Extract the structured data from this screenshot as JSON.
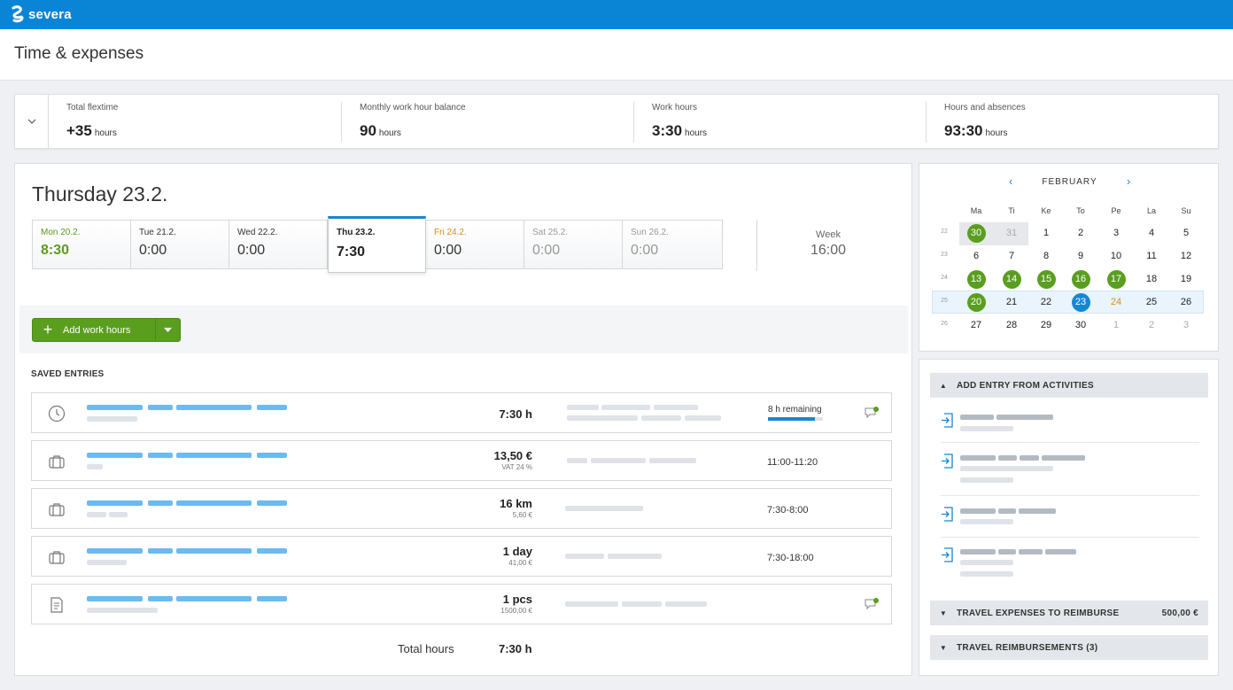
{
  "app": {
    "brand": "severa"
  },
  "page": {
    "title": "Time & expenses"
  },
  "summary": {
    "stats": [
      {
        "label": "Total flextime",
        "value": "+35",
        "unit": "hours"
      },
      {
        "label": "Monthly work hour balance",
        "value": "90",
        "unit": "hours"
      },
      {
        "label": "Work hours",
        "value": "3:30",
        "unit": "hours"
      },
      {
        "label": "Hours and absences",
        "value": "93:30",
        "unit": "hours"
      }
    ]
  },
  "day": {
    "title": "Thursday 23.2.",
    "days": [
      {
        "name": "Mon 20.2.",
        "value": "8:30"
      },
      {
        "name": "Tue 21.2.",
        "value": "0:00"
      },
      {
        "name": "Wed 22.2.",
        "value": "0:00"
      },
      {
        "name": "Thu 23.2.",
        "value": "7:30"
      },
      {
        "name": "Fri 24.2.",
        "value": "0:00"
      },
      {
        "name": "Sat 25.2.",
        "value": "0:00"
      },
      {
        "name": "Sun 26.2.",
        "value": "0:00"
      }
    ],
    "week_label": "Week",
    "week_value": "16:00"
  },
  "actions": {
    "add_work_hours": "Add work hours"
  },
  "saved": {
    "label": "SAVED ENTRIES",
    "entries": [
      {
        "icon": "clock-icon",
        "amount": "7:30 h",
        "sub": "",
        "remaining": "8 h remaining",
        "progress": 0.85
      },
      {
        "icon": "briefcase-icon",
        "amount": "13,50 €",
        "sub": "VAT 24 %",
        "time": "11:00-11:20"
      },
      {
        "icon": "briefcase-icon",
        "amount": "16 km",
        "sub": "5,60 €",
        "time": "7:30-8:00"
      },
      {
        "icon": "briefcase-icon",
        "amount": "1 day",
        "sub": "41,00 €",
        "time": "7:30-18:00"
      },
      {
        "icon": "receipt-icon",
        "amount": "1 pcs",
        "sub": "1500,00 €"
      }
    ],
    "total_label": "Total hours",
    "total_value": "7:30 h"
  },
  "calendar": {
    "month": "FEBRUARY",
    "weekdays": [
      "Ma",
      "Ti",
      "Ke",
      "To",
      "Pe",
      "La",
      "Su"
    ],
    "weeks": [
      {
        "num": "22",
        "days": [
          "30",
          "31",
          "1",
          "2",
          "3",
          "4",
          "5"
        ]
      },
      {
        "num": "23",
        "days": [
          "6",
          "7",
          "8",
          "9",
          "10",
          "11",
          "12"
        ]
      },
      {
        "num": "24",
        "days": [
          "13",
          "14",
          "15",
          "16",
          "17",
          "18",
          "19"
        ]
      },
      {
        "num": "25",
        "days": [
          "20",
          "21",
          "22",
          "23",
          "24",
          "25",
          "26"
        ]
      },
      {
        "num": "26",
        "days": [
          "27",
          "28",
          "29",
          "30",
          "1",
          "2",
          "3"
        ]
      }
    ]
  },
  "side": {
    "add_from_activities": "ADD ENTRY FROM ACTIVITIES",
    "travel_expenses": "TRAVEL EXPENSES TO REIMBURSE",
    "travel_expenses_amount": "500,00 €",
    "travel_reimbursements": "TRAVEL REIMBURSEMENTS (3)"
  },
  "colors": {
    "brand": "#0a85d6",
    "green": "#5a9e1f",
    "orange": "#e08a1c",
    "selected_blue": "#1786d3"
  }
}
